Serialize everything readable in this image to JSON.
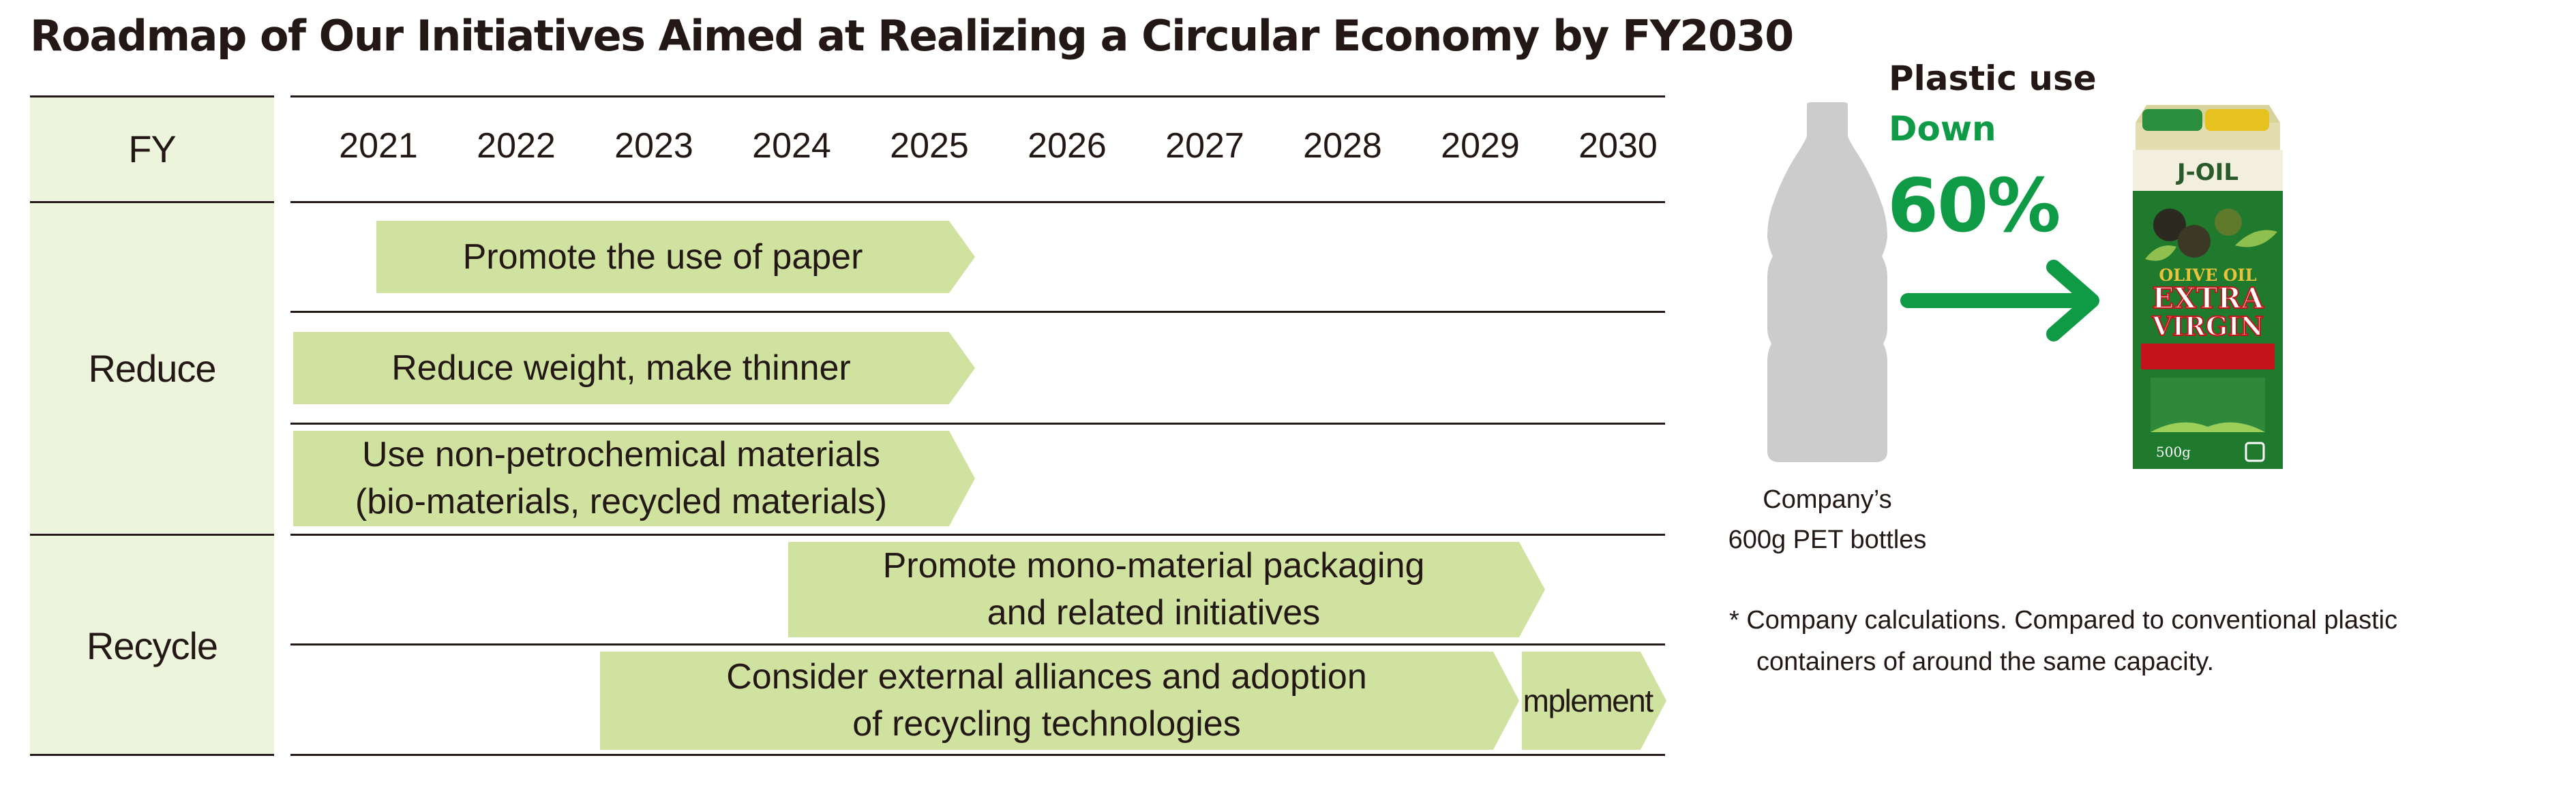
{
  "title": "Roadmap of Our Initiatives Aimed at Realizing a Circular Economy by FY2030",
  "roadmap": {
    "fy_label": "FY",
    "years": [
      "2021",
      "2022",
      "2023",
      "2024",
      "2025",
      "2026",
      "2027",
      "2028",
      "2029",
      "2030"
    ],
    "categories": [
      {
        "label": "Reduce"
      },
      {
        "label": "Recycle"
      }
    ],
    "initiatives": [
      {
        "category": "Reduce",
        "lines": [
          "Promote the use of paper"
        ],
        "start": "2021",
        "end": "2025"
      },
      {
        "category": "Reduce",
        "lines": [
          "Reduce weight, make thinner"
        ],
        "start": "2021",
        "end": "2025"
      },
      {
        "category": "Reduce",
        "lines": [
          "Use non-petrochemical materials",
          "(bio-materials, recycled materials)"
        ],
        "start": "2021",
        "end": "2025"
      },
      {
        "category": "Recycle",
        "lines": [
          "Promote mono-material packaging",
          "and related initiatives"
        ],
        "start": "2024",
        "end": "2029"
      },
      {
        "category": "Recycle",
        "lines": [
          "Consider external alliances and adoption",
          "of recycling technologies"
        ],
        "start": "2023",
        "end": "2029"
      },
      {
        "category": "Recycle",
        "lines": [
          "Implement"
        ],
        "start": "2030",
        "end": "2030"
      }
    ]
  },
  "comparison": {
    "plastic_use_label": "Plastic use",
    "direction_label": "Down",
    "reduction_percent": "60%",
    "bottle_caption": [
      "Company’s",
      "600g PET bottles"
    ],
    "product_lettering": [
      "J-OIL",
      "OLIVE OIL",
      "EXTRA",
      "VIRGIN",
      "500g"
    ],
    "note": [
      "*  Company calculations. Compared to conventional plastic",
      "containers of around the same capacity."
    ],
    "colors": {
      "accent": "#0f9b45",
      "bar": "#cfe2a0",
      "category_bg": "#edf4dc",
      "bottle": "#cccccc"
    }
  }
}
